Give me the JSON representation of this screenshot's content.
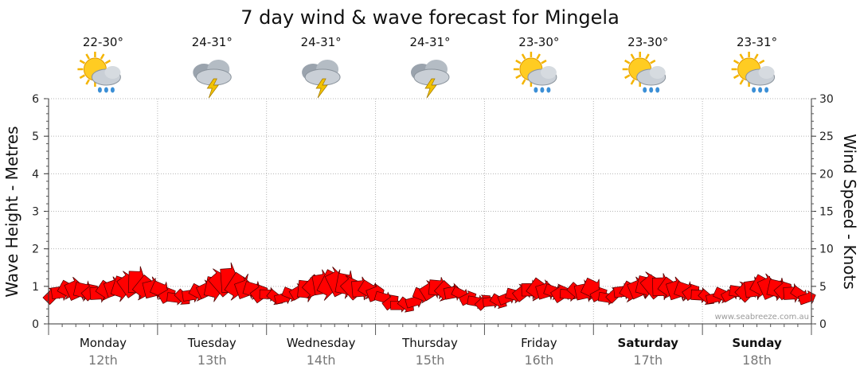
{
  "chart_data": {
    "type": "area",
    "title": "7 day wind & wave forecast for Mingela",
    "ylabel_left": "Wave Height - Metres",
    "ylabel_right": "Wind Speed - Knots",
    "ylim_left": [
      0,
      6
    ],
    "ylim_right": [
      0,
      30
    ],
    "yticks_left": [
      "0",
      "1",
      "2",
      "3",
      "4",
      "5",
      "6"
    ],
    "yticks_right": [
      "0",
      "5",
      "10",
      "15",
      "20",
      "25",
      "30"
    ],
    "grid": true,
    "watermark": "www.seabreeze.com.au",
    "days": [
      {
        "day": "Monday",
        "date": "12th",
        "bold": false,
        "temp": "22-30°",
        "icon": "partly-sunny-showers-icon"
      },
      {
        "day": "Tuesday",
        "date": "13th",
        "bold": false,
        "temp": "24-31°",
        "icon": "thunderstorm-icon"
      },
      {
        "day": "Wednesday",
        "date": "14th",
        "bold": false,
        "temp": "24-31°",
        "icon": "thunderstorm-icon"
      },
      {
        "day": "Thursday",
        "date": "15th",
        "bold": false,
        "temp": "24-31°",
        "icon": "thunderstorm-icon"
      },
      {
        "day": "Friday",
        "date": "16th",
        "bold": false,
        "temp": "23-30°",
        "icon": "partly-sunny-showers-icon"
      },
      {
        "day": "Saturday",
        "date": "17th",
        "bold": true,
        "temp": "23-30°",
        "icon": "partly-sunny-showers-icon"
      },
      {
        "day": "Sunday",
        "date": "18th",
        "bold": true,
        "temp": "23-31°",
        "icon": "partly-sunny-showers-icon"
      }
    ],
    "wind_series": {
      "name": "Wind",
      "color": "#ff0000",
      "speeds_knots": [
        4.5,
        5,
        5.5,
        6,
        5.5,
        5,
        5,
        5.5,
        6,
        6.5,
        7,
        7.5,
        6.5,
        6,
        5.5,
        4.5,
        4,
        4,
        4.5,
        5,
        5.5,
        6.5,
        7.5,
        8,
        7,
        6,
        5.5,
        5,
        4.5,
        4,
        4,
        4.5,
        5,
        6,
        6.5,
        7,
        7.5,
        7.5,
        7,
        6.5,
        6,
        5.5,
        5,
        4,
        3.5,
        3,
        3,
        3.5,
        4.5,
        5.5,
        6,
        5.5,
        5,
        4.5,
        4,
        3.5,
        3.5,
        3.5,
        3.5,
        4,
        4.5,
        5,
        5.5,
        6,
        5.5,
        5,
        5,
        4.5,
        5,
        5.5,
        6,
        4.5,
        4,
        4.5,
        5,
        5.5,
        6,
        6.5,
        7,
        6.5,
        6,
        6,
        5.5,
        5,
        4.5,
        4,
        4,
        4.5,
        4.5,
        5,
        5.5,
        6,
        6.5,
        6.5,
        6,
        5.5,
        5,
        4.5,
        4
      ]
    }
  }
}
